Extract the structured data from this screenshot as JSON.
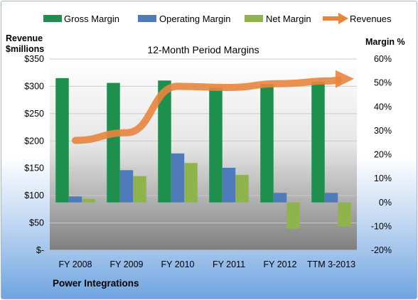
{
  "chart_data": {
    "type": "bar",
    "title": "12-Month Period Margins",
    "company": "Power Integrations",
    "left_axis": {
      "label_line1": "Revenue",
      "label_line2": "$millions",
      "ticks": [
        "$-",
        "$50",
        "$100",
        "$150",
        "$200",
        "$250",
        "$300",
        "$350"
      ],
      "range": [
        0,
        350
      ]
    },
    "right_axis": {
      "label": "Margin %",
      "ticks": [
        "-20%",
        "-10%",
        "0%",
        "10%",
        "20%",
        "30%",
        "40%",
        "50%",
        "60%"
      ],
      "range": [
        -20,
        60
      ]
    },
    "categories": [
      "FY 2008",
      "FY 2009",
      "FY 2010",
      "FY 2011",
      "FY 2012",
      "TTM 3-2013"
    ],
    "series": [
      {
        "name": "Gross Margin",
        "kind": "bar",
        "axis": "right",
        "color": "#1f8f4e",
        "values": [
          52,
          50,
          51,
          48,
          49.5,
          50.5
        ]
      },
      {
        "name": "Operating Margin",
        "kind": "bar",
        "axis": "right",
        "color": "#4f7bbb",
        "values": [
          2.5,
          13.5,
          20.5,
          14.5,
          4,
          4
        ]
      },
      {
        "name": "Net Margin",
        "kind": "bar",
        "axis": "right",
        "color": "#8fb34d",
        "values": [
          1.5,
          11,
          16.5,
          11.5,
          -11,
          -10
        ]
      },
      {
        "name": "Revenues",
        "kind": "line",
        "axis": "left",
        "color": "#e8843d",
        "values": [
          201,
          215,
          300,
          298,
          305,
          310
        ]
      }
    ],
    "legend_position": "top",
    "grid": true
  }
}
